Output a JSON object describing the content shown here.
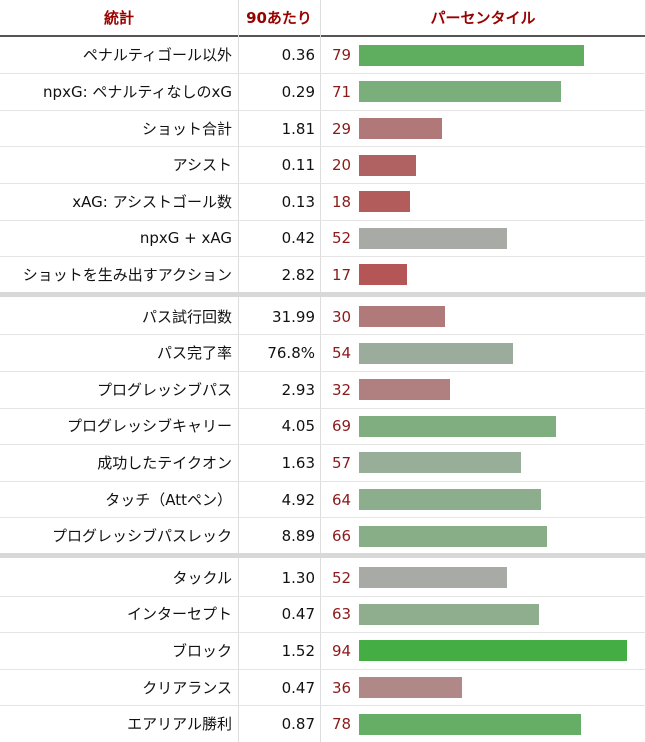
{
  "header": {
    "stat": "統計",
    "per90": "90あたり",
    "percentile": "パーセンタイル"
  },
  "groups": [
    {
      "rows": [
        {
          "stat": "ペナルティゴール以外",
          "per90": "0.36",
          "percentile": 79,
          "color": "#5fae5f"
        },
        {
          "stat": "npxG: ペナルティなしのxG",
          "per90": "0.29",
          "percentile": 71,
          "color": "#7aae7a"
        },
        {
          "stat": "ショット合計",
          "per90": "1.81",
          "percentile": 29,
          "color": "#b07878"
        },
        {
          "stat": "アシスト",
          "per90": "0.11",
          "percentile": 20,
          "color": "#b06262"
        },
        {
          "stat": "xAG: アシストゴール数",
          "per90": "0.13",
          "percentile": 18,
          "color": "#b25c5c"
        },
        {
          "stat": "npxG + xAG",
          "per90": "0.42",
          "percentile": 52,
          "color": "#a8aaa5"
        },
        {
          "stat": "ショットを生み出すアクション",
          "per90": "2.82",
          "percentile": 17,
          "color": "#b45656"
        }
      ]
    },
    {
      "rows": [
        {
          "stat": "パス試行回数",
          "per90": "31.99",
          "percentile": 30,
          "color": "#b07a7a"
        },
        {
          "stat": "パス完了率",
          "per90": "76.8%",
          "percentile": 54,
          "color": "#9cac9c"
        },
        {
          "stat": "プログレッシブパス",
          "per90": "2.93",
          "percentile": 32,
          "color": "#b08080"
        },
        {
          "stat": "プログレッシブキャリー",
          "per90": "4.05",
          "percentile": 69,
          "color": "#80ae80"
        },
        {
          "stat": "成功したテイクオン",
          "per90": "1.63",
          "percentile": 57,
          "color": "#98ae98"
        },
        {
          "stat": "タッチ（Attペン）",
          "per90": "4.92",
          "percentile": 64,
          "color": "#8cae8c"
        },
        {
          "stat": "プログレッシブパスレック",
          "per90": "8.89",
          "percentile": 66,
          "color": "#88ae88"
        }
      ]
    },
    {
      "rows": [
        {
          "stat": "タックル",
          "per90": "1.30",
          "percentile": 52,
          "color": "#a8aaa5"
        },
        {
          "stat": "インターセプト",
          "per90": "0.47",
          "percentile": 63,
          "color": "#8eae8e"
        },
        {
          "stat": "ブロック",
          "per90": "1.52",
          "percentile": 94,
          "color": "#44ae44"
        },
        {
          "stat": "クリアランス",
          "per90": "0.47",
          "percentile": 36,
          "color": "#b08888"
        },
        {
          "stat": "エアリアル勝利",
          "per90": "0.87",
          "percentile": 78,
          "color": "#66ae66"
        }
      ]
    }
  ]
}
